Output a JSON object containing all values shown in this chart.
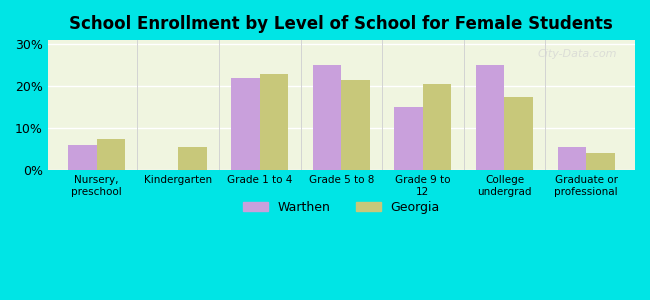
{
  "title": "School Enrollment by Level of School for Female Students",
  "categories": [
    "Nursery,\npreschool",
    "Kindergarten",
    "Grade 1 to 4",
    "Grade 5 to 8",
    "Grade 9 to\n12",
    "College\nundergrad",
    "Graduate or\nprofessional"
  ],
  "warthen": [
    6.0,
    0.0,
    22.0,
    25.0,
    15.0,
    25.0,
    5.5
  ],
  "georgia": [
    7.5,
    5.5,
    23.0,
    21.5,
    20.5,
    17.5,
    4.0
  ],
  "warthen_color": "#c9a0dc",
  "georgia_color": "#c8c87a",
  "background_color": "#00e5e5",
  "plot_bg": "#f0f5e0",
  "yticks": [
    0,
    10,
    20,
    30
  ],
  "ylim": [
    0,
    31
  ],
  "bar_width": 0.35,
  "legend_warthen": "Warthen",
  "legend_georgia": "Georgia",
  "watermark": "City-Data.com"
}
